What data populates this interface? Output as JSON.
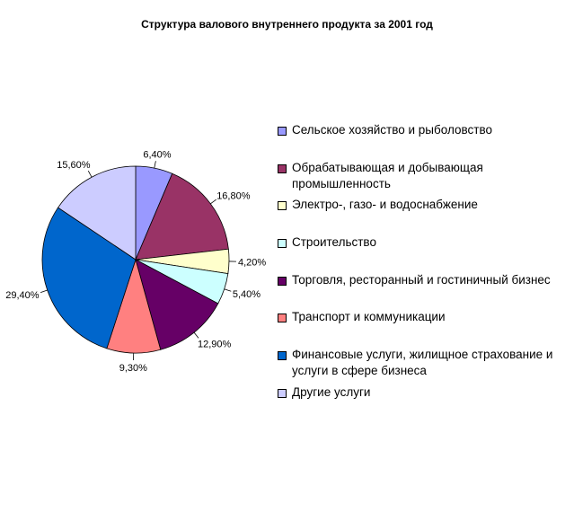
{
  "chart_data": {
    "type": "pie",
    "title": "Структура валового внутреннего продукта за 2001 год",
    "legend_position": "right",
    "slices": [
      {
        "name": "Сельское хозяйство и рыболовство",
        "value": 6.4,
        "label": "6,40%",
        "color": "#9999FF"
      },
      {
        "name": "Обрабатывающая и добывающая промышленность",
        "value": 16.8,
        "label": "16,80%",
        "color": "#993366"
      },
      {
        "name": "Электро-, газо- и водоснабжение",
        "value": 4.2,
        "label": "4,20%",
        "color": "#FFFFCC"
      },
      {
        "name": "Строительство",
        "value": 5.4,
        "label": "5,40%",
        "color": "#CCFFFF"
      },
      {
        "name": "Торговля, ресторанный и гостиничный бизнес",
        "value": 12.9,
        "label": "12,90%",
        "color": "#660066"
      },
      {
        "name": "Транспорт и коммуникации",
        "value": 9.3,
        "label": "9,30%",
        "color": "#FF8080"
      },
      {
        "name": "Финансовые услуги, жилищное страхование и услуги в сфере бизнеса",
        "value": 29.4,
        "label": "29,40%",
        "color": "#0066CC"
      },
      {
        "name": "Другие услуги",
        "value": 15.6,
        "label": "15,60%",
        "color": "#CCCCFF"
      }
    ]
  }
}
